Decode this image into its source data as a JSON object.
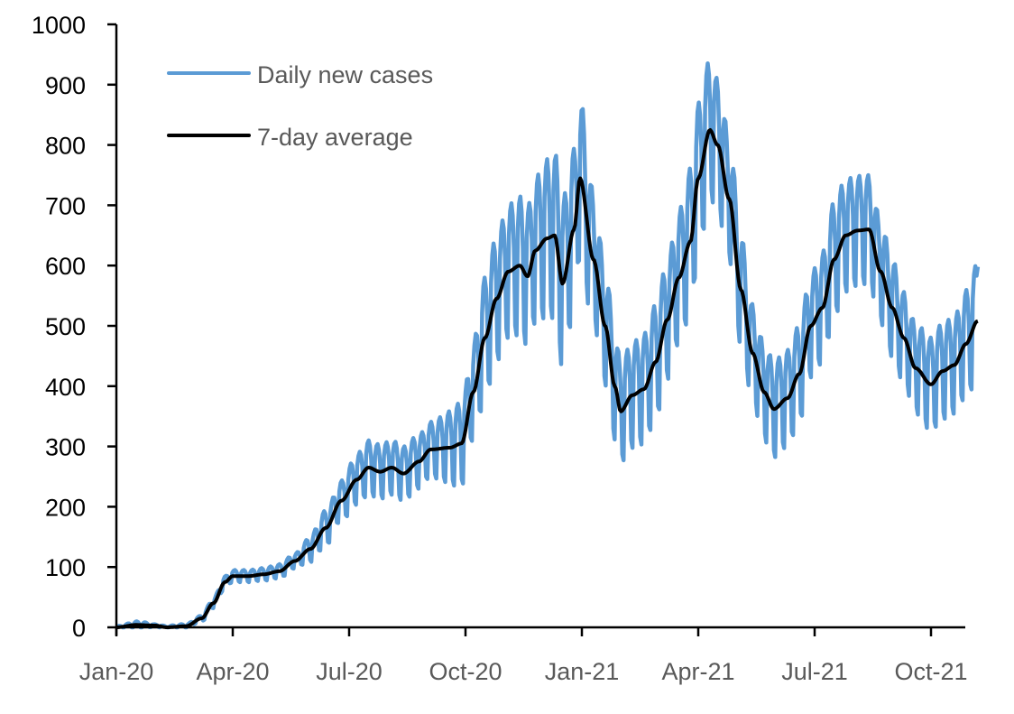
{
  "chart_data": {
    "type": "line",
    "title": "",
    "xlabel": "",
    "ylabel": "",
    "ylim": [
      0,
      1000
    ],
    "yticks": [
      "0",
      "100",
      "200",
      "300",
      "400",
      "500",
      "600",
      "700",
      "800",
      "900",
      "1000"
    ],
    "ytick_values": [
      0,
      100,
      200,
      300,
      400,
      500,
      600,
      700,
      800,
      900,
      1000
    ],
    "xticks": [
      "Jan-20",
      "Apr-20",
      "Jul-20",
      "Oct-20",
      "Jan-21",
      "Apr-21",
      "Jul-21",
      "Oct-21"
    ],
    "xtick_month_index": [
      0,
      3,
      6,
      9,
      12,
      15,
      18,
      21
    ],
    "xlim_months": [
      0,
      22.2
    ],
    "grid": false,
    "legend": {
      "position": "top-left",
      "entries": [
        {
          "label": "Daily new cases",
          "color": "#5B9BD5"
        },
        {
          "label": "7-day average",
          "color": "#000000"
        }
      ]
    },
    "series": [
      {
        "name": "7-day average",
        "color": "#000000",
        "unit": "weekly anchor points (month index, value)",
        "points": [
          [
            0.0,
            0
          ],
          [
            0.5,
            4
          ],
          [
            1.0,
            3
          ],
          [
            1.3,
            0
          ],
          [
            1.8,
            2
          ],
          [
            2.2,
            15
          ],
          [
            2.5,
            40
          ],
          [
            2.8,
            75
          ],
          [
            3.0,
            85
          ],
          [
            3.4,
            85
          ],
          [
            3.8,
            88
          ],
          [
            4.2,
            93
          ],
          [
            4.6,
            110
          ],
          [
            5.0,
            130
          ],
          [
            5.4,
            165
          ],
          [
            5.8,
            210
          ],
          [
            6.2,
            245
          ],
          [
            6.5,
            265
          ],
          [
            6.8,
            258
          ],
          [
            7.1,
            265
          ],
          [
            7.4,
            255
          ],
          [
            7.8,
            275
          ],
          [
            8.1,
            295
          ],
          [
            8.6,
            298
          ],
          [
            8.9,
            305
          ],
          [
            9.2,
            390
          ],
          [
            9.5,
            480
          ],
          [
            9.8,
            545
          ],
          [
            10.1,
            590
          ],
          [
            10.4,
            600
          ],
          [
            10.6,
            582
          ],
          [
            10.8,
            625
          ],
          [
            11.1,
            645
          ],
          [
            11.3,
            650
          ],
          [
            11.5,
            570
          ],
          [
            11.8,
            660
          ],
          [
            11.95,
            745
          ],
          [
            12.3,
            610
          ],
          [
            12.6,
            500
          ],
          [
            12.85,
            400
          ],
          [
            13.0,
            358
          ],
          [
            13.3,
            385
          ],
          [
            13.6,
            395
          ],
          [
            13.9,
            440
          ],
          [
            14.2,
            510
          ],
          [
            14.5,
            580
          ],
          [
            14.8,
            640
          ],
          [
            15.0,
            745
          ],
          [
            15.3,
            825
          ],
          [
            15.5,
            800
          ],
          [
            15.8,
            710
          ],
          [
            16.1,
            560
          ],
          [
            16.4,
            455
          ],
          [
            16.7,
            390
          ],
          [
            16.95,
            362
          ],
          [
            17.3,
            380
          ],
          [
            17.6,
            420
          ],
          [
            17.9,
            500
          ],
          [
            18.2,
            530
          ],
          [
            18.5,
            610
          ],
          [
            18.8,
            650
          ],
          [
            19.1,
            658
          ],
          [
            19.4,
            660
          ],
          [
            19.7,
            590
          ],
          [
            20.0,
            530
          ],
          [
            20.3,
            480
          ],
          [
            20.6,
            430
          ],
          [
            21.0,
            403
          ],
          [
            21.3,
            425
          ],
          [
            21.6,
            435
          ],
          [
            21.9,
            470
          ],
          [
            22.2,
            508
          ]
        ]
      },
      {
        "name": "Daily new cases",
        "color": "#5B9BD5",
        "unit": "derived: 7-day average plus weekly oscillation of given amplitude (month index, amplitude)",
        "amplitude_points": [
          [
            0.0,
            2
          ],
          [
            0.6,
            6
          ],
          [
            1.0,
            2
          ],
          [
            2.0,
            4
          ],
          [
            2.8,
            10
          ],
          [
            3.5,
            10
          ],
          [
            4.5,
            12
          ],
          [
            5.5,
            30
          ],
          [
            6.5,
            45
          ],
          [
            8.0,
            45
          ],
          [
            9.0,
            70
          ],
          [
            9.5,
            100
          ],
          [
            10.5,
            115
          ],
          [
            11.5,
            140
          ],
          [
            12.0,
            130
          ],
          [
            12.5,
            100
          ],
          [
            13.0,
            85
          ],
          [
            14.0,
            95
          ],
          [
            15.0,
            125
          ],
          [
            15.5,
            110
          ],
          [
            16.5,
            80
          ],
          [
            17.5,
            80
          ],
          [
            18.5,
            95
          ],
          [
            19.3,
            90
          ],
          [
            20.5,
            75
          ],
          [
            21.5,
            80
          ],
          [
            22.2,
            95
          ]
        ],
        "end_value": 598
      }
    ]
  }
}
